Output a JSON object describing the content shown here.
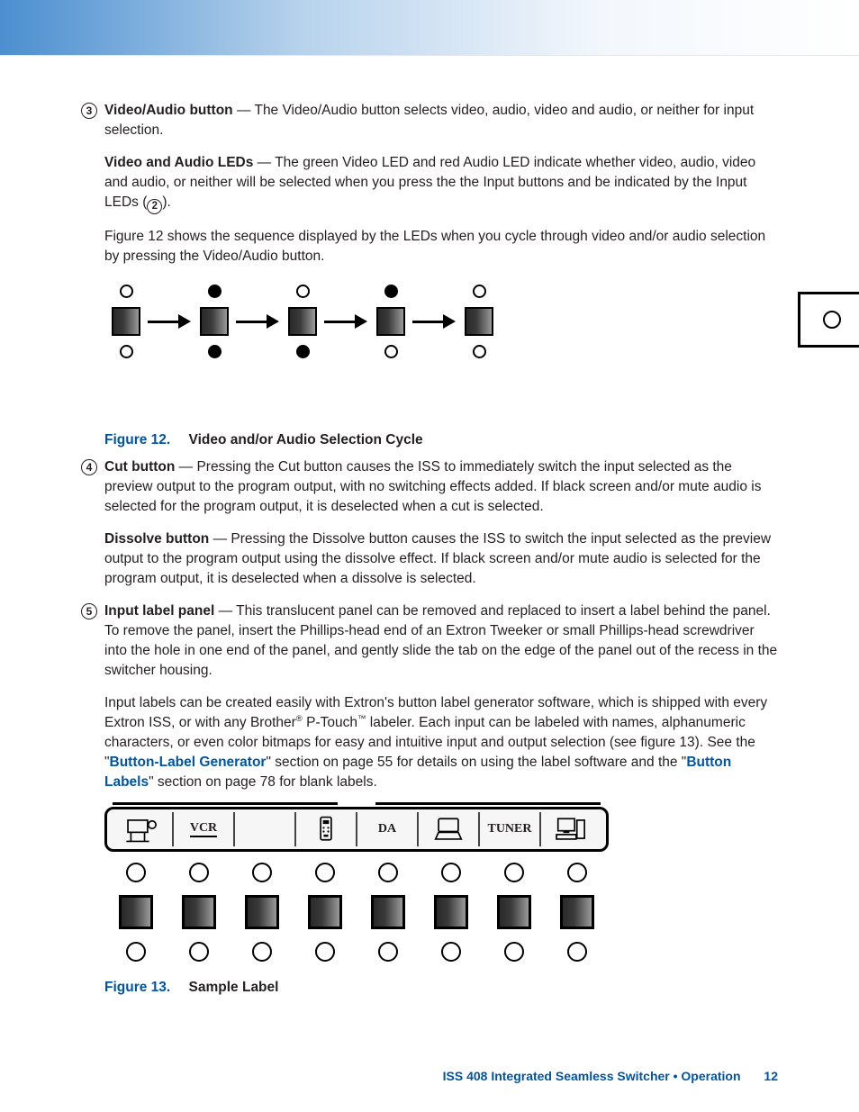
{
  "colors": {
    "text": "#231f20",
    "accent": "#0054a6",
    "topbar_gradient": [
      "#4b8ecf",
      "#b7d2ec",
      "#f3f7fc",
      "#ffffff"
    ],
    "button_gradient": [
      "#2a2a2a",
      "#3a3a3a",
      "#9a9a9a"
    ],
    "page_bg": "#ffffff",
    "strip_bg": "#f6f6f6"
  },
  "items": {
    "n3": "3",
    "n4": "4",
    "n5": "5",
    "inline_n2": "2",
    "video_audio_button_label": "Video/Audio button",
    "video_audio_button_body": " — The Video/Audio button selects video, audio, video and audio, or neither for input selection.",
    "video_audio_leds_label": "Video and Audio LEDs",
    "video_audio_leds_body_pre": " — The green Video LED and red Audio LED indicate whether video, audio, video and audio, or neither will be selected when you press the the Input buttons and be indicated by the Input LEDs (",
    "video_audio_leds_body_post": ").",
    "fig12_intro": "Figure 12 shows the sequence displayed by the LEDs when you cycle through video and/or audio selection by pressing the Video/Audio button.",
    "cut_label": "Cut button",
    "cut_body": " — Pressing the Cut button causes the ISS to immediately switch the input selected as the preview output to the program output, with no switching effects added. If black screen and/or mute audio is selected for the program output, it is deselected when a cut is selected.",
    "dissolve_label": "Dissolve button",
    "dissolve_body": " — Pressing the Dissolve button causes the ISS to switch the input selected as the preview output to the program output using the dissolve effect. If black screen and/or mute audio is selected for the program output, it is deselected when a dissolve is selected.",
    "input_panel_label": "Input label panel",
    "input_panel_body": " — This translucent panel can be removed and replaced to insert a label behind the panel. To remove the panel, insert the Phillips-head end of an Extron Tweeker or small Phillips-head screwdriver into the hole in one end of the panel, and gently slide the tab on the edge of the panel out of the recess in the switcher housing.",
    "input_labels_p_pre": "Input labels can be created easily with Extron's button label generator software, which is shipped with every Extron ISS, or with any Brother",
    "sup_r": "®",
    "ptouch": " P-Touch",
    "sup_tm": "™",
    "input_labels_p_mid": " labeler. Each input can be labeled with names, alphanumeric characters, or even color bitmaps for easy and intuitive input and output selection (see figure 13). See the \"",
    "link1": "Button-Label Generator",
    "input_labels_p_mid2": "\" section on page 55 for details on using the label software and the \"",
    "link2": "Button Labels",
    "input_labels_p_post": "\" section on page 78 for blank labels."
  },
  "figure12": {
    "label": "Figure 12.",
    "title": "Video and/or Audio Selection Cycle",
    "states": [
      {
        "top": "off",
        "bottom": "off"
      },
      {
        "top": "on",
        "bottom": "on"
      },
      {
        "top": "off",
        "bottom": "on"
      },
      {
        "top": "on",
        "bottom": "off"
      },
      {
        "top": "off",
        "bottom": "off"
      }
    ],
    "loopback_box": {
      "left_led": "off",
      "right_led": "on"
    }
  },
  "figure13": {
    "label": "Figure 13.",
    "title": "Sample Label",
    "slots": [
      {
        "type": "icon",
        "name": "camcorder"
      },
      {
        "type": "text",
        "text": "VCR",
        "underlined": true
      },
      {
        "type": "blank"
      },
      {
        "type": "icon",
        "name": "cellphone"
      },
      {
        "type": "text",
        "text": "DA"
      },
      {
        "type": "icon",
        "name": "laptop"
      },
      {
        "type": "text",
        "text": "TUNER"
      },
      {
        "type": "icon",
        "name": "pc"
      }
    ],
    "button_count": 8
  },
  "footer": {
    "text": "ISS 408 Integrated Seamless Switcher • Operation",
    "page": "12"
  }
}
